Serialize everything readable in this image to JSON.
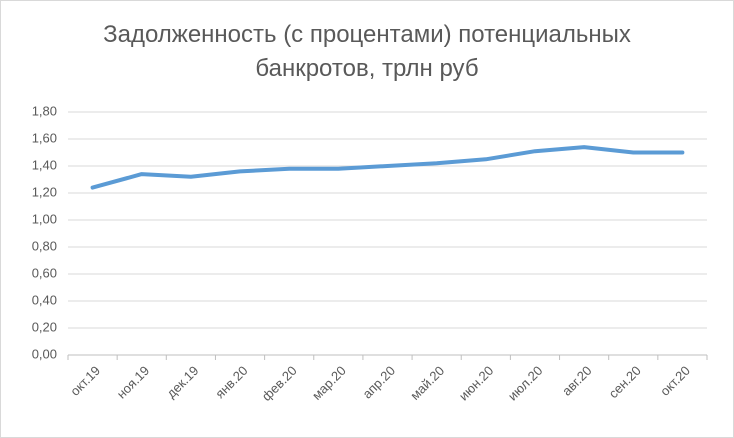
{
  "chart_data": {
    "type": "line",
    "title": "Задолженность (с процентами) потенциальных банкротов, трлн руб",
    "categories": [
      "окт.19",
      "ноя.19",
      "дек.19",
      "янв.20",
      "фев.20",
      "мар.20",
      "апр.20",
      "май.20",
      "июн.20",
      "июл.20",
      "авг.20",
      "сен.20",
      "окт.20"
    ],
    "values": [
      1.24,
      1.34,
      1.32,
      1.36,
      1.38,
      1.38,
      1.4,
      1.42,
      1.45,
      1.51,
      1.54,
      1.5,
      1.5
    ],
    "color": "#5b9bd5",
    "ylim": [
      0,
      1.8
    ],
    "yticks": [
      {
        "value": 0,
        "label": "0,00"
      },
      {
        "value": 0.2,
        "label": "0,20"
      },
      {
        "value": 0.4,
        "label": "0,40"
      },
      {
        "value": 0.6,
        "label": "0,60"
      },
      {
        "value": 0.8,
        "label": "0,80"
      },
      {
        "value": 1.0,
        "label": "1,00"
      },
      {
        "value": 1.2,
        "label": "1,20"
      },
      {
        "value": 1.4,
        "label": "1,40"
      },
      {
        "value": 1.6,
        "label": "1,60"
      },
      {
        "value": 1.8,
        "label": "1,80"
      }
    ],
    "grid": true
  }
}
